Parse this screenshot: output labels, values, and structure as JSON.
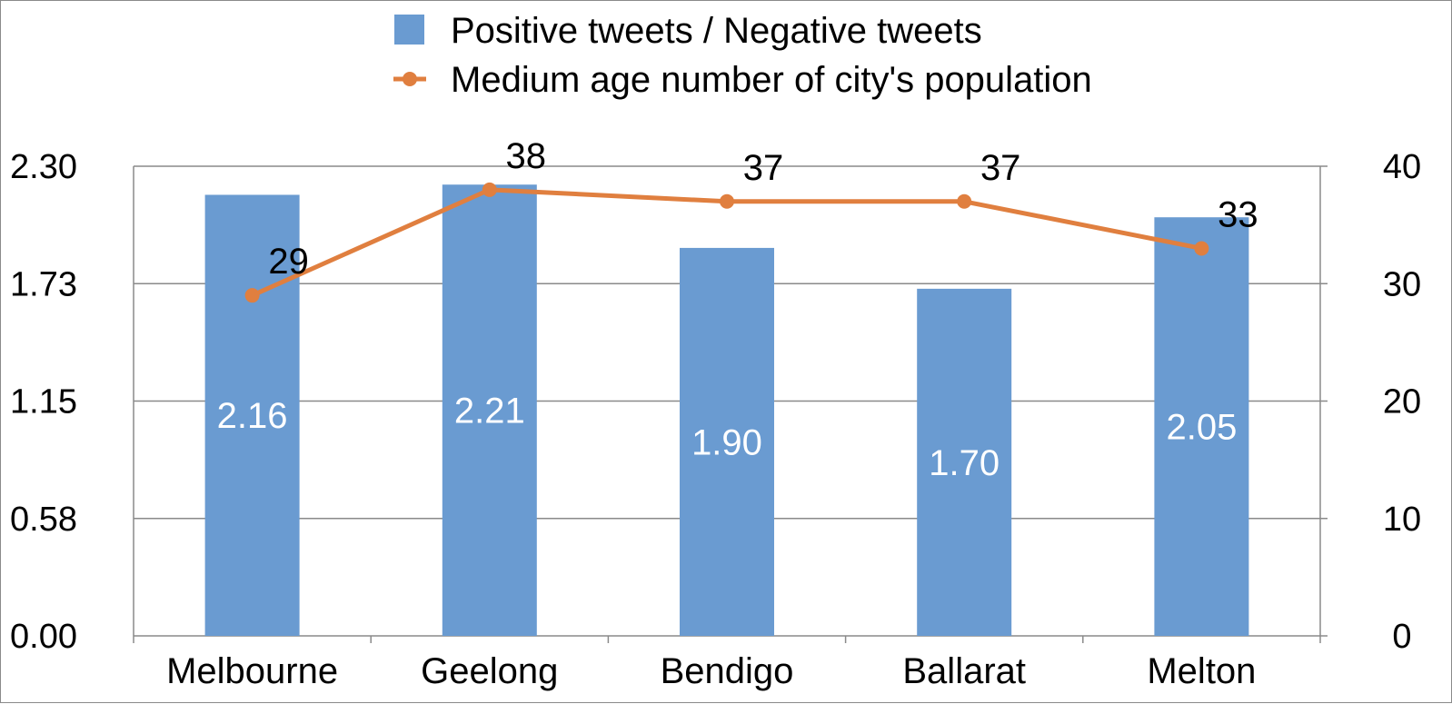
{
  "chart_data": {
    "type": "bar+line",
    "categories": [
      "Melbourne",
      "Geelong",
      "Bendigo",
      "Ballarat",
      "Melton"
    ],
    "series": [
      {
        "name": "Positive tweets / Negative tweets",
        "type": "bar",
        "axis": "left",
        "color": "#6a9bd1",
        "values": [
          2.16,
          2.21,
          1.9,
          1.7,
          2.05
        ],
        "labels": [
          "2.16",
          "2.21",
          "1.90",
          "1.70",
          "2.05"
        ]
      },
      {
        "name": "Medium age number of city's population",
        "type": "line",
        "axis": "right",
        "color": "#e07f3f",
        "values": [
          29,
          38,
          37,
          37,
          33
        ],
        "labels": [
          "29",
          "38",
          "37",
          "37",
          "33"
        ]
      }
    ],
    "y_left": {
      "ticks": [
        "0.00",
        "0.58",
        "1.15",
        "1.73",
        "2.30"
      ],
      "range": [
        0,
        2.3
      ]
    },
    "y_right": {
      "ticks": [
        "0",
        "10",
        "20",
        "30",
        "40"
      ],
      "range": [
        0,
        40
      ]
    },
    "grid": true,
    "legend_position": "top-center"
  }
}
